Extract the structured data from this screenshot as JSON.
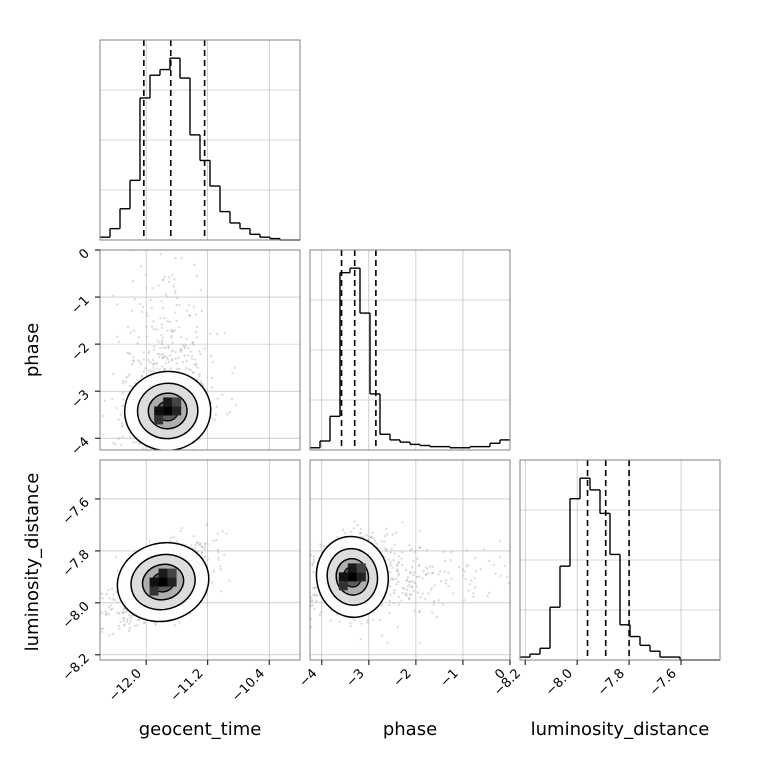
{
  "chart_data": {
    "type": "corner",
    "parameters": [
      "geocent_time",
      "phase",
      "luminosity_distance"
    ],
    "axis_labels": {
      "x": [
        "geocent_time",
        "phase",
        "luminosity_distance"
      ],
      "y": [
        "",
        "phase",
        "luminosity_distance"
      ]
    },
    "ranges": {
      "geocent_time": [
        -12.6,
        -10.0
      ],
      "phase": [
        -4.25,
        0.0
      ],
      "luminosity_distance": [
        -8.22,
        -7.45
      ]
    },
    "ticks": {
      "geocent_time": {
        "values": [
          -12.0,
          -11.2,
          -10.4
        ],
        "labels": [
          "−12.0",
          "−11.2",
          "−10.4"
        ]
      },
      "phase": {
        "values": [
          -4,
          -3,
          -2,
          -1,
          0
        ],
        "labels": [
          "−4",
          "−3",
          "−2",
          "−1",
          "0"
        ]
      },
      "luminosity_distance": {
        "values": [
          -8.2,
          -8.0,
          -7.8,
          -7.6
        ],
        "labels": [
          "−8.2",
          "−8.0",
          "−7.8",
          "−7.6"
        ]
      }
    },
    "grid": true,
    "histograms": {
      "geocent_time": {
        "bin_edges": [
          -12.6,
          -12.47,
          -12.34,
          -12.21,
          -12.08,
          -11.95,
          -11.82,
          -11.69,
          -11.56,
          -11.43,
          -11.3,
          -11.17,
          -11.04,
          -10.91,
          -10.78,
          -10.65,
          -10.52,
          -10.39,
          -10.26,
          -10.13,
          -10.0
        ],
        "counts": [
          1,
          4,
          11,
          21,
          50,
          58,
          60,
          64,
          57,
          37,
          28,
          19,
          10,
          6,
          4,
          2,
          1,
          0.5,
          0,
          0
        ],
        "quantiles": [
          -12.03,
          -11.68,
          -11.24
        ]
      },
      "phase": {
        "bin_edges": [
          -4.25,
          -4.0375,
          -3.825,
          -3.6125,
          -3.4,
          -3.1875,
          -2.975,
          -2.7625,
          -2.55,
          -2.3375,
          -2.125,
          -1.9125,
          -1.7,
          -1.4875,
          -1.275,
          -1.0625,
          -0.85,
          -0.6375,
          -0.425,
          -0.2125,
          0.0
        ],
        "counts": [
          2,
          8,
          30,
          158,
          162,
          122,
          50,
          14,
          9,
          7,
          5,
          4,
          3,
          3,
          2,
          2,
          3,
          3,
          6,
          9
        ],
        "quantiles": [
          -3.58,
          -3.3,
          -2.85
        ]
      },
      "luminosity_distance": {
        "bin_edges": [
          -8.22,
          -8.1815,
          -8.143,
          -8.1045,
          -8.066,
          -8.0275,
          -7.989,
          -7.9505,
          -7.912,
          -7.8735,
          -7.835,
          -7.7965,
          -7.758,
          -7.7195,
          -7.681,
          -7.6425,
          -7.604,
          -7.5655,
          -7.527,
          -7.4885,
          -7.45
        ],
        "counts": [
          1,
          2,
          4,
          18,
          32,
          55,
          62,
          58,
          50,
          36,
          12,
          8,
          5,
          3,
          1,
          1,
          0,
          0,
          0,
          0
        ],
        "quantiles": [
          -7.96,
          -7.89,
          -7.8
        ]
      }
    },
    "densities": [
      {
        "x": "geocent_time",
        "y": "phase",
        "mean": [
          -11.72,
          -3.42
        ],
        "std": [
          0.28,
          0.42
        ],
        "corr": 0.2,
        "scatter_extent": [
          -12.6,
          -10.0,
          -4.25,
          0.0
        ]
      },
      {
        "x": "geocent_time",
        "y": "luminosity_distance",
        "mean": [
          -11.78,
          -7.92
        ],
        "std": [
          0.3,
          0.075
        ],
        "corr": 0.55,
        "scatter_extent": [
          -12.6,
          -10.0,
          -8.22,
          -7.45
        ]
      },
      {
        "x": "phase",
        "y": "luminosity_distance",
        "mean": [
          -3.35,
          -7.9
        ],
        "std": [
          0.38,
          0.078
        ],
        "corr": 0.25,
        "scatter_extent": [
          -4.25,
          0.0,
          -8.22,
          -7.45
        ]
      }
    ]
  }
}
